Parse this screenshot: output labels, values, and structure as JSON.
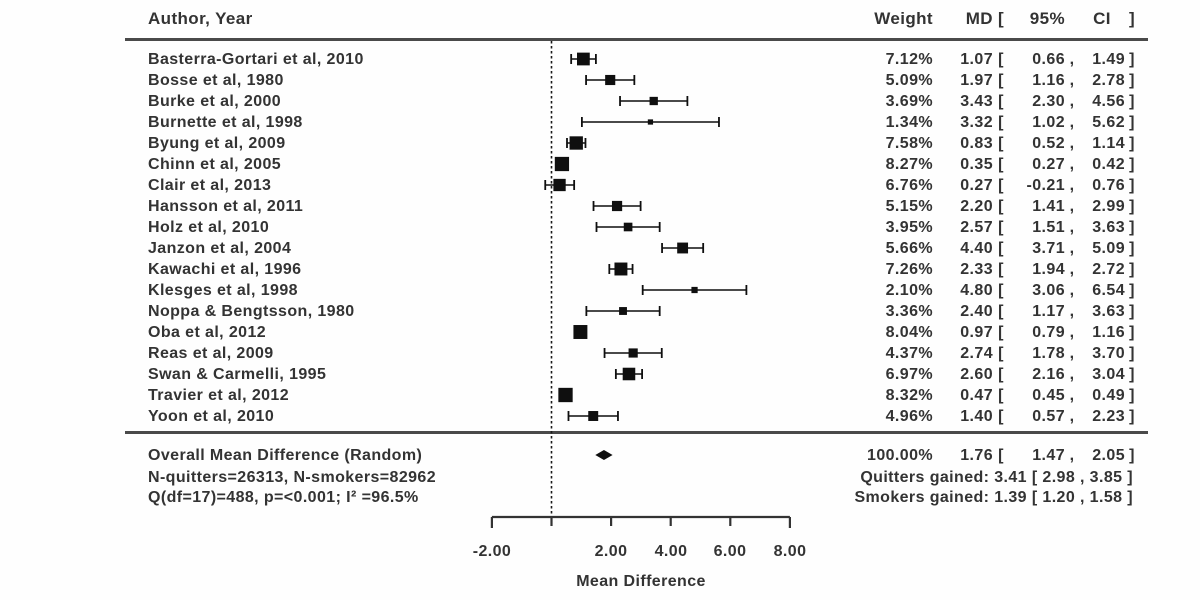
{
  "colors": {
    "ink": "#333333",
    "marker": "#0f0f0f",
    "separator": "#4a4a4a",
    "background": "#fefefe"
  },
  "header": {
    "author": "Author, Year",
    "weight": "Weight",
    "md": "MD",
    "open": "[",
    "pct": "95%",
    "ci": "CI",
    "close": "]"
  },
  "chart_data": {
    "type": "forest",
    "x_axis": {
      "label": "Mean Difference",
      "range": [
        -2,
        8
      ],
      "zero_line": 0,
      "ticks": [
        {
          "value": -2,
          "label": "-2.00"
        },
        {
          "value": 0,
          "label": ""
        },
        {
          "value": 2,
          "label": "2.00"
        },
        {
          "value": 4,
          "label": "4.00"
        },
        {
          "value": 6,
          "label": "6.00"
        },
        {
          "value": 8,
          "label": "8.00"
        }
      ]
    },
    "studies": [
      {
        "label": "Basterra-Gortari et al, 2010",
        "weight_pct": 7.12,
        "md": 1.07,
        "ci_low": 0.66,
        "ci_high": 1.49
      },
      {
        "label": "Bosse et al, 1980",
        "weight_pct": 5.09,
        "md": 1.97,
        "ci_low": 1.16,
        "ci_high": 2.78
      },
      {
        "label": "Burke et al, 2000",
        "weight_pct": 3.69,
        "md": 3.43,
        "ci_low": 2.3,
        "ci_high": 4.56
      },
      {
        "label": "Burnette et al, 1998",
        "weight_pct": 1.34,
        "md": 3.32,
        "ci_low": 1.02,
        "ci_high": 5.62
      },
      {
        "label": "Byung et al, 2009",
        "weight_pct": 7.58,
        "md": 0.83,
        "ci_low": 0.52,
        "ci_high": 1.14
      },
      {
        "label": "Chinn et al, 2005",
        "weight_pct": 8.27,
        "md": 0.35,
        "ci_low": 0.27,
        "ci_high": 0.42
      },
      {
        "label": "Clair et al, 2013",
        "weight_pct": 6.76,
        "md": 0.27,
        "ci_low": -0.21,
        "ci_high": 0.76
      },
      {
        "label": "Hansson et al, 2011",
        "weight_pct": 5.15,
        "md": 2.2,
        "ci_low": 1.41,
        "ci_high": 2.99
      },
      {
        "label": "Holz et al, 2010",
        "weight_pct": 3.95,
        "md": 2.57,
        "ci_low": 1.51,
        "ci_high": 3.63
      },
      {
        "label": "Janzon et al, 2004",
        "weight_pct": 5.66,
        "md": 4.4,
        "ci_low": 3.71,
        "ci_high": 5.09
      },
      {
        "label": "Kawachi et al, 1996",
        "weight_pct": 7.26,
        "md": 2.33,
        "ci_low": 1.94,
        "ci_high": 2.72
      },
      {
        "label": "Klesges et al, 1998",
        "weight_pct": 2.1,
        "md": 4.8,
        "ci_low": 3.06,
        "ci_high": 6.54
      },
      {
        "label": "Noppa & Bengtsson, 1980",
        "weight_pct": 3.36,
        "md": 2.4,
        "ci_low": 1.17,
        "ci_high": 3.63
      },
      {
        "label": "Oba et al, 2012",
        "weight_pct": 8.04,
        "md": 0.97,
        "ci_low": 0.79,
        "ci_high": 1.16
      },
      {
        "label": "Reas et al, 2009",
        "weight_pct": 4.37,
        "md": 2.74,
        "ci_low": 1.78,
        "ci_high": 3.7
      },
      {
        "label": "Swan & Carmelli, 1995",
        "weight_pct": 6.97,
        "md": 2.6,
        "ci_low": 2.16,
        "ci_high": 3.04
      },
      {
        "label": "Travier et al, 2012",
        "weight_pct": 8.32,
        "md": 0.47,
        "ci_low": 0.45,
        "ci_high": 0.49
      },
      {
        "label": "Yoon et al, 2010",
        "weight_pct": 4.96,
        "md": 1.4,
        "ci_low": 0.57,
        "ci_high": 2.23
      }
    ],
    "overall": {
      "label": "Overall Mean Difference (Random)",
      "weight_label": "100.00%",
      "md": 1.76,
      "ci_low": 1.47,
      "ci_high": 2.05
    },
    "notes_left": [
      "N-quitters=26313, N-smokers=82962",
      "Q(df=17)=488, p=<0.001; I² =96.5%"
    ],
    "notes_right": [
      "Quitters gained:  3.41 [ 2.98 , 3.85 ]",
      "Smokers gained:  1.39 [ 1.20 , 1.58 ]"
    ]
  }
}
